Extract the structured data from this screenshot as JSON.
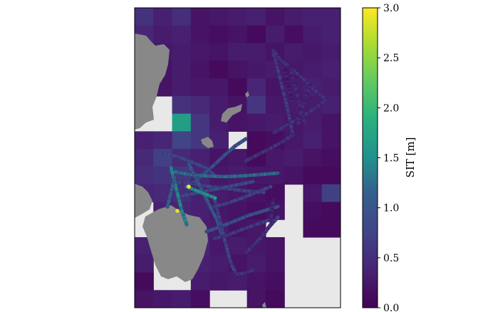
{
  "chart_data": {
    "type": "heatmap",
    "title": "",
    "colormap": "viridis",
    "colorbar": {
      "label": "SIT [m]",
      "min": 0.0,
      "max": 3.0,
      "ticks": [
        "0.0",
        "0.5",
        "1.0",
        "1.5",
        "2.0",
        "2.5",
        "3.0"
      ]
    },
    "land_color": "#888888",
    "no_data_color": "#e8e8e8",
    "grid_rows": 17,
    "grid_cols": 11,
    "cells": [
      [
        0.55,
        0.35,
        0.5,
        0.2,
        0.25,
        0.3,
        0.35,
        0.2,
        0.3,
        0.35,
        0.35
      ],
      [
        0.4,
        0.3,
        0.35,
        0.2,
        0.15,
        0.2,
        0.1,
        0.3,
        0.15,
        0.3,
        0.35
      ],
      [
        null,
        0.25,
        0.3,
        0.25,
        0.2,
        0.3,
        0.3,
        0.2,
        0.3,
        0.25,
        0.3
      ],
      [
        null,
        0.2,
        0.3,
        0.2,
        0.1,
        0.2,
        0.25,
        0.3,
        0.25,
        0.3,
        0.35
      ],
      [
        null,
        0.2,
        0.3,
        0.25,
        0.25,
        0.1,
        0.4,
        0.2,
        0.3,
        0.35,
        0.3
      ],
      [
        null,
        null,
        0.55,
        0.45,
        0.3,
        0.2,
        0.6,
        0.25,
        0.3,
        0.3,
        0.35
      ],
      [
        null,
        null,
        1.65,
        0.6,
        0.3,
        0.2,
        0.25,
        0.3,
        0.25,
        0.3,
        0.2
      ],
      [
        0.35,
        0.4,
        0.75,
        0.6,
        0.35,
        null,
        0.1,
        0.15,
        0.25,
        0.35,
        0.2
      ],
      [
        0.45,
        0.7,
        0.45,
        0.35,
        0.2,
        0.25,
        0.1,
        0.25,
        0.3,
        0.2,
        0.15
      ],
      [
        0.5,
        0.55,
        0.6,
        0.4,
        0.25,
        0.3,
        0.25,
        0.25,
        0.2,
        0.1,
        0.1
      ],
      [
        0.4,
        0.45,
        0.5,
        0.35,
        0.3,
        0.25,
        0.2,
        0.15,
        null,
        0.25,
        0.7
      ],
      [
        null,
        0.35,
        0.4,
        0.35,
        0.25,
        0.2,
        0.15,
        0.2,
        null,
        0.15,
        0.1
      ],
      [
        null,
        0.3,
        0.35,
        0.3,
        0.3,
        0.2,
        0.25,
        null,
        null,
        0.1,
        0.1
      ],
      [
        0.35,
        null,
        null,
        0.4,
        0.25,
        0.3,
        0.25,
        0.2,
        null,
        null,
        null
      ],
      [
        0.3,
        null,
        null,
        0.35,
        0.3,
        0.2,
        0.3,
        0.2,
        null,
        null,
        null
      ],
      [
        0.1,
        null,
        null,
        0.3,
        0.25,
        0.3,
        0.2,
        0.15,
        null,
        null,
        null
      ],
      [
        0.2,
        0.25,
        0.3,
        0.15,
        null,
        null,
        0.2,
        0.1,
        null,
        null,
        null
      ]
    ],
    "tracks": [
      {
        "points": [
          [
            383,
            70
          ],
          [
            388,
            90
          ],
          [
            393,
            110
          ],
          [
            398,
            130
          ],
          [
            403,
            150
          ],
          [
            407,
            170
          ],
          [
            411,
            190
          ]
        ],
        "value": 0.6
      },
      {
        "points": [
          [
            383,
            70
          ],
          [
            395,
            85
          ],
          [
            408,
            95
          ],
          [
            425,
            110
          ],
          [
            440,
            125
          ],
          [
            458,
            140
          ]
        ],
        "value": 0.5
      },
      {
        "points": [
          [
            458,
            140
          ],
          [
            445,
            150
          ],
          [
            430,
            160
          ],
          [
            412,
            170
          ],
          [
            398,
            178
          ],
          [
            385,
            186
          ]
        ],
        "value": 0.5
      },
      {
        "points": [
          [
            408,
            95
          ],
          [
            412,
            115
          ],
          [
            418,
            135
          ],
          [
            423,
            155
          ],
          [
            428,
            172
          ]
        ],
        "value": 0.4
      },
      {
        "points": [
          [
            435,
            120
          ],
          [
            428,
            140
          ],
          [
            422,
            160
          ],
          [
            418,
            178
          ]
        ],
        "value": 0.4
      },
      {
        "points": [
          [
            400,
            100
          ],
          [
            405,
            120
          ],
          [
            410,
            145
          ]
        ],
        "value": 0.3
      },
      {
        "points": [
          [
            410,
            190
          ],
          [
            395,
            200
          ],
          [
            380,
            208
          ],
          [
            360,
            218
          ],
          [
            345,
            226
          ]
        ],
        "value": 0.5
      },
      {
        "points": [
          [
            230,
            215
          ],
          [
            250,
            220
          ],
          [
            270,
            228
          ],
          [
            290,
            236
          ],
          [
            300,
            245
          ]
        ],
        "value": 0.8
      },
      {
        "points": [
          [
            345,
            195
          ],
          [
            330,
            205
          ],
          [
            315,
            218
          ],
          [
            300,
            232
          ],
          [
            285,
            245
          ],
          [
            270,
            258
          ]
        ],
        "value": 0.9
      },
      {
        "points": [
          [
            240,
            240
          ],
          [
            265,
            245
          ],
          [
            290,
            247
          ],
          [
            315,
            248
          ],
          [
            340,
            247
          ],
          [
            365,
            245
          ],
          [
            390,
            243
          ]
        ],
        "value": 1.2
      },
      {
        "points": [
          [
            245,
            255
          ],
          [
            270,
            258
          ],
          [
            295,
            262
          ],
          [
            320,
            265
          ],
          [
            345,
            268
          ],
          [
            370,
            270
          ]
        ],
        "value": 0.7
      },
      {
        "points": [
          [
            255,
            275
          ],
          [
            280,
            270
          ],
          [
            305,
            265
          ],
          [
            330,
            260
          ],
          [
            355,
            255
          ]
        ],
        "value": 0.8
      },
      {
        "points": [
          [
            240,
            235
          ],
          [
            245,
            255
          ],
          [
            250,
            275
          ],
          [
            255,
            295
          ],
          [
            262,
            315
          ]
        ],
        "value": 1.4
      },
      {
        "points": [
          [
            265,
            230
          ],
          [
            275,
            250
          ],
          [
            285,
            270
          ],
          [
            295,
            290
          ],
          [
            305,
            310
          ],
          [
            312,
            330
          ]
        ],
        "value": 1.0
      },
      {
        "points": [
          [
            300,
            290
          ],
          [
            320,
            285
          ],
          [
            340,
            278
          ],
          [
            360,
            270
          ],
          [
            380,
            262
          ]
        ],
        "value": 0.7
      },
      {
        "points": [
          [
            290,
            325
          ],
          [
            310,
            318
          ],
          [
            330,
            310
          ],
          [
            350,
            302
          ],
          [
            370,
            296
          ],
          [
            390,
            290
          ]
        ],
        "value": 0.9
      },
      {
        "points": [
          [
            300,
            335
          ],
          [
            320,
            330
          ],
          [
            340,
            322
          ],
          [
            360,
            315
          ],
          [
            380,
            308
          ]
        ],
        "value": 0.6
      },
      {
        "points": [
          [
            300,
            275
          ],
          [
            305,
            295
          ],
          [
            310,
            315
          ],
          [
            315,
            335
          ],
          [
            320,
            355
          ],
          [
            325,
            372
          ],
          [
            332,
            385
          ]
        ],
        "value": 0.7
      },
      {
        "points": [
          [
            332,
            385
          ],
          [
            345,
            383
          ],
          [
            358,
            378
          ]
        ],
        "value": 0.5
      },
      {
        "points": [
          [
            350,
            350
          ],
          [
            360,
            340
          ],
          [
            370,
            328
          ],
          [
            380,
            316
          ],
          [
            390,
            305
          ]
        ],
        "value": 0.6
      },
      {
        "points": [
          [
            345,
            355
          ],
          [
            355,
            345
          ],
          [
            365,
            335
          ],
          [
            373,
            325
          ],
          [
            380,
            315
          ]
        ],
        "value": 0.5
      },
      {
        "points": [
          [
            380,
            310
          ],
          [
            382,
            295
          ],
          [
            384,
            280
          ]
        ],
        "value": 0.4
      },
      {
        "points": [
          [
            262,
            262
          ],
          [
            282,
            270
          ],
          [
            302,
            278
          ]
        ],
        "value": 1.5
      },
      {
        "points": [
          [
            235,
            290
          ],
          [
            240,
            270
          ],
          [
            245,
            250
          ]
        ],
        "value": 1.1
      }
    ],
    "hotspots": [
      {
        "point": [
          265,
          262
        ],
        "value": 3.0
      },
      {
        "point": [
          249,
          296
        ],
        "value": 2.9
      }
    ]
  }
}
